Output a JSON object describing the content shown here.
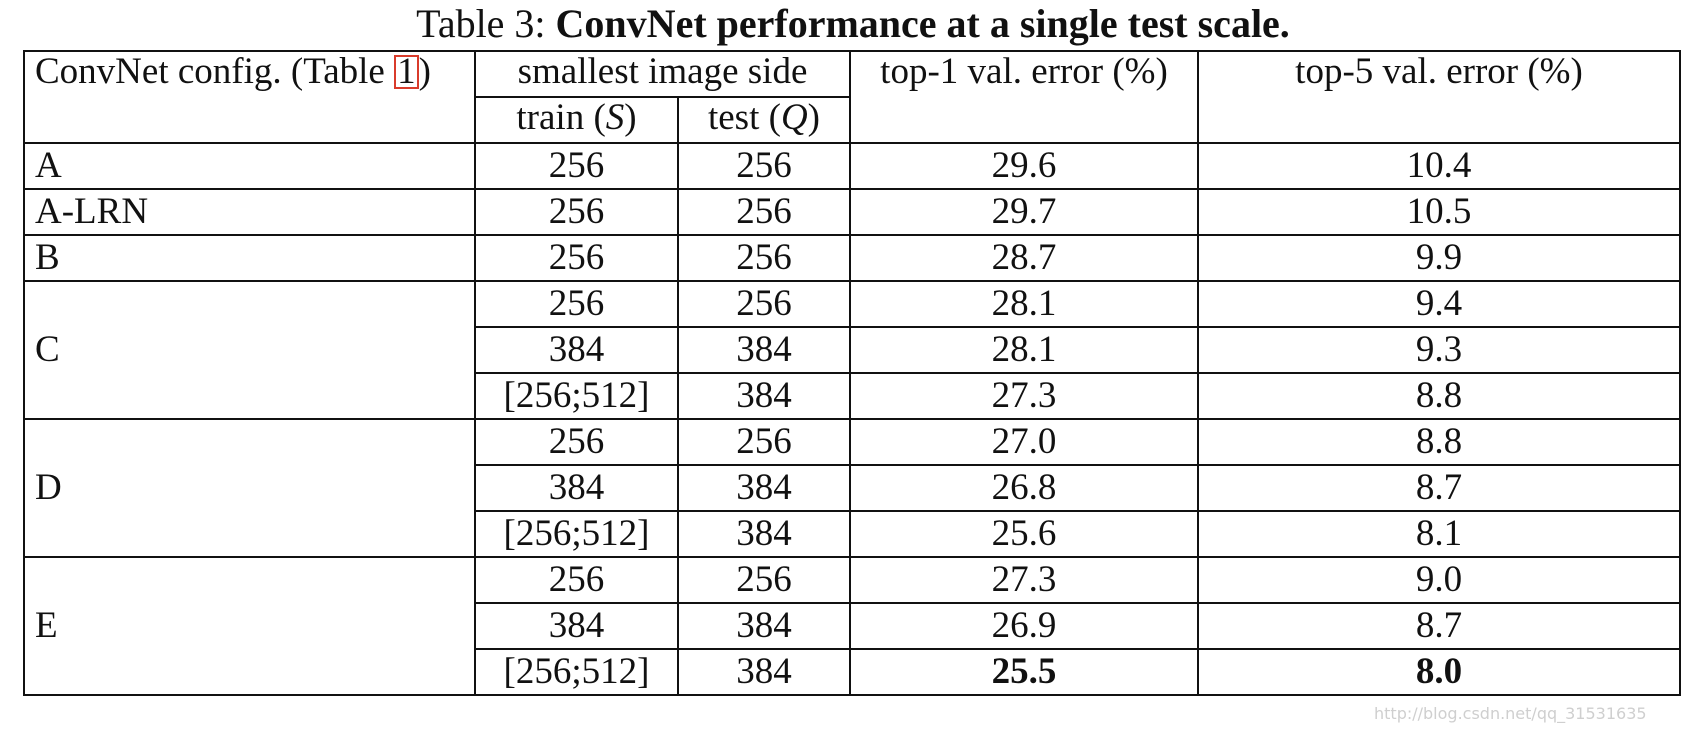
{
  "caption": {
    "prefix": "Table 3: ",
    "title": "ConvNet performance at a single test scale."
  },
  "header": {
    "config_label": "ConvNet config. (Table ",
    "config_ref": "1",
    "config_close": ")",
    "image_side": "smallest image side",
    "train_label": "train (",
    "train_var": "S",
    "train_close": ")",
    "test_label": "test (",
    "test_var": "Q",
    "test_close": ")",
    "top1": "top-1 val. error (%)",
    "top5": "top-5 val. error (%)"
  },
  "groups": [
    {
      "config": "A",
      "rows": [
        {
          "train": "256",
          "test": "256",
          "top1": "29.6",
          "top5": "10.4"
        }
      ]
    },
    {
      "config": "A-LRN",
      "rows": [
        {
          "train": "256",
          "test": "256",
          "top1": "29.7",
          "top5": "10.5"
        }
      ]
    },
    {
      "config": "B",
      "rows": [
        {
          "train": "256",
          "test": "256",
          "top1": "28.7",
          "top5": "9.9"
        }
      ]
    },
    {
      "config": "C",
      "rows": [
        {
          "train": "256",
          "test": "256",
          "top1": "28.1",
          "top5": "9.4"
        },
        {
          "train": "384",
          "test": "384",
          "top1": "28.1",
          "top5": "9.3"
        },
        {
          "train": "[256;512]",
          "test": "384",
          "top1": "27.3",
          "top5": "8.8"
        }
      ]
    },
    {
      "config": "D",
      "rows": [
        {
          "train": "256",
          "test": "256",
          "top1": "27.0",
          "top5": "8.8"
        },
        {
          "train": "384",
          "test": "384",
          "top1": "26.8",
          "top5": "8.7"
        },
        {
          "train": "[256;512]",
          "test": "384",
          "top1": "25.6",
          "top5": "8.1"
        }
      ]
    },
    {
      "config": "E",
      "rows": [
        {
          "train": "256",
          "test": "256",
          "top1": "27.3",
          "top5": "9.0"
        },
        {
          "train": "384",
          "test": "384",
          "top1": "26.9",
          "top5": "8.7"
        },
        {
          "train": "[256;512]",
          "test": "384",
          "top1": "25.5",
          "top5": "8.0",
          "bold": true
        }
      ]
    }
  ],
  "watermark": "http://blog.csdn.net/qq_31531635"
}
